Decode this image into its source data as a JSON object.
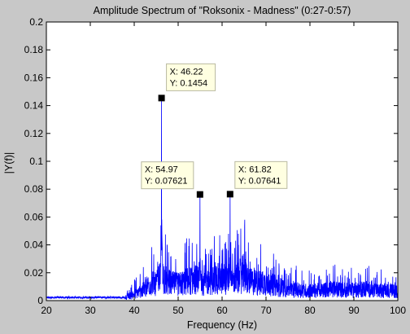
{
  "chart_data": {
    "type": "line",
    "title": "Amplitude Spectrum of \"Roksonix - Madness\" (0:27-0:57)",
    "xlabel": "Frequency (Hz)",
    "ylabel": "|Y(f)|",
    "xlim": [
      20,
      100
    ],
    "ylim": [
      0,
      0.2
    ],
    "xticks": [
      "20",
      "30",
      "40",
      "50",
      "60",
      "70",
      "80",
      "90",
      "100"
    ],
    "yticks": [
      "0",
      "0.02",
      "0.04",
      "0.06",
      "0.08",
      "0.1",
      "0.12",
      "0.14",
      "0.16",
      "0.18",
      "0.2"
    ],
    "grid": false,
    "series_color": "#0000ff",
    "background_color": "#c8c8c8",
    "plot_background": "#ffffff",
    "peaks": [
      {
        "x": 46.22,
        "y": 0.1454
      },
      {
        "x": 54.97,
        "y": 0.07621
      },
      {
        "x": 61.82,
        "y": 0.07641
      }
    ],
    "datatips": [
      {
        "x_label": "X: 46.22",
        "y_label": "Y: 0.1454",
        "x": 46.22,
        "y": 0.1454
      },
      {
        "x_label": "X: 54.97",
        "y_label": "Y: 0.07621",
        "x": 54.97,
        "y": 0.07621
      },
      {
        "x_label": "X: 61.82",
        "y_label": "Y: 0.07641",
        "x": 61.82,
        "y": 0.07641
      }
    ],
    "envelope": [
      [
        20,
        0.002
      ],
      [
        30,
        0.002
      ],
      [
        35,
        0.003
      ],
      [
        38,
        0.004
      ],
      [
        40,
        0.008
      ],
      [
        42,
        0.013
      ],
      [
        43,
        0.018
      ],
      [
        44,
        0.022
      ],
      [
        45,
        0.02
      ],
      [
        46,
        0.03
      ],
      [
        47,
        0.026
      ],
      [
        48,
        0.022
      ],
      [
        50,
        0.02
      ],
      [
        52,
        0.024
      ],
      [
        54,
        0.026
      ],
      [
        56,
        0.022
      ],
      [
        58,
        0.026
      ],
      [
        60,
        0.028
      ],
      [
        62,
        0.026
      ],
      [
        64,
        0.028
      ],
      [
        65,
        0.035
      ],
      [
        66,
        0.024
      ],
      [
        68,
        0.022
      ],
      [
        70,
        0.022
      ],
      [
        75,
        0.014
      ],
      [
        80,
        0.012
      ],
      [
        85,
        0.014
      ],
      [
        90,
        0.013
      ],
      [
        93,
        0.015
      ],
      [
        95,
        0.012
      ],
      [
        100,
        0.012
      ]
    ]
  }
}
